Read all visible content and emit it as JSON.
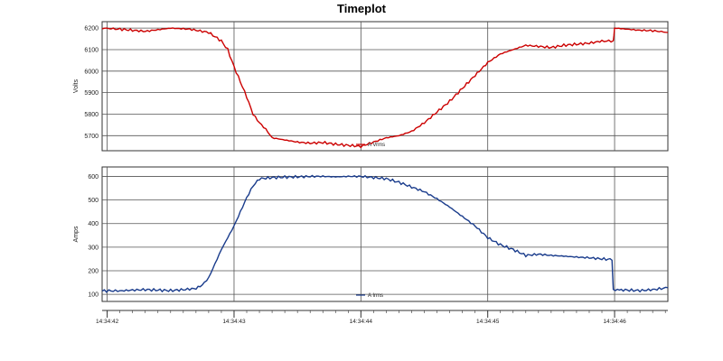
{
  "title": "Timeplot",
  "x_axis": {
    "ticks": [
      "14:34:42",
      "14:34:43",
      "14:34:44",
      "14:34:45",
      "14:34:46"
    ]
  },
  "chart_data": [
    {
      "type": "line",
      "ylabel": "Volts",
      "ylim": [
        5630,
        6230
      ],
      "yticks": [
        5700,
        5800,
        5900,
        6000,
        6100,
        6200
      ],
      "grid": true,
      "legend": "bottom-center",
      "series": [
        {
          "name": "A Vrms",
          "color": "#cc0000",
          "x": [
            41.96,
            42.1,
            42.3,
            42.5,
            42.65,
            42.8,
            42.9,
            42.95,
            43.0,
            43.05,
            43.1,
            43.15,
            43.2,
            43.25,
            43.3,
            43.4,
            43.5,
            43.6,
            43.7,
            43.8,
            43.9,
            44.0,
            44.1,
            44.2,
            44.3,
            44.4,
            44.5,
            44.6,
            44.7,
            44.8,
            44.9,
            45.0,
            45.1,
            45.2,
            45.3,
            45.4,
            45.5,
            45.6,
            45.7,
            45.8,
            45.9,
            45.99,
            46.0,
            46.1,
            46.2,
            46.3,
            46.42
          ],
          "y": [
            6200,
            6195,
            6185,
            6200,
            6195,
            6180,
            6140,
            6100,
            6020,
            5950,
            5880,
            5800,
            5760,
            5730,
            5690,
            5680,
            5670,
            5665,
            5668,
            5660,
            5655,
            5650,
            5670,
            5690,
            5700,
            5720,
            5760,
            5810,
            5860,
            5920,
            5980,
            6040,
            6080,
            6100,
            6120,
            6115,
            6110,
            6120,
            6125,
            6130,
            6140,
            6140,
            6200,
            6195,
            6190,
            6188,
            6180
          ]
        }
      ]
    },
    {
      "type": "line",
      "ylabel": "Amps",
      "ylim": [
        70,
        640
      ],
      "yticks": [
        100,
        200,
        300,
        400,
        500,
        600
      ],
      "grid": true,
      "legend": "bottom-center",
      "series": [
        {
          "name": "A Irms",
          "color": "#1a3c8c",
          "x": [
            41.96,
            42.1,
            42.2,
            42.3,
            42.4,
            42.5,
            42.6,
            42.7,
            42.75,
            42.8,
            42.85,
            42.9,
            42.95,
            43.0,
            43.05,
            43.1,
            43.15,
            43.2,
            43.3,
            43.4,
            43.5,
            43.6,
            43.7,
            43.8,
            43.9,
            44.0,
            44.1,
            44.2,
            44.3,
            44.4,
            44.5,
            44.6,
            44.7,
            44.8,
            44.9,
            45.0,
            45.1,
            45.2,
            45.3,
            45.4,
            45.5,
            45.6,
            45.7,
            45.8,
            45.9,
            45.98,
            45.99,
            46.1,
            46.2,
            46.3,
            46.42
          ],
          "y": [
            115,
            115,
            118,
            120,
            118,
            116,
            120,
            125,
            140,
            170,
            230,
            290,
            340,
            390,
            450,
            510,
            560,
            590,
            595,
            597,
            598,
            600,
            600,
            598,
            600,
            600,
            595,
            590,
            575,
            555,
            535,
            505,
            470,
            430,
            390,
            340,
            310,
            290,
            265,
            270,
            265,
            262,
            258,
            255,
            250,
            248,
            120,
            118,
            116,
            120,
            128
          ]
        }
      ]
    }
  ]
}
